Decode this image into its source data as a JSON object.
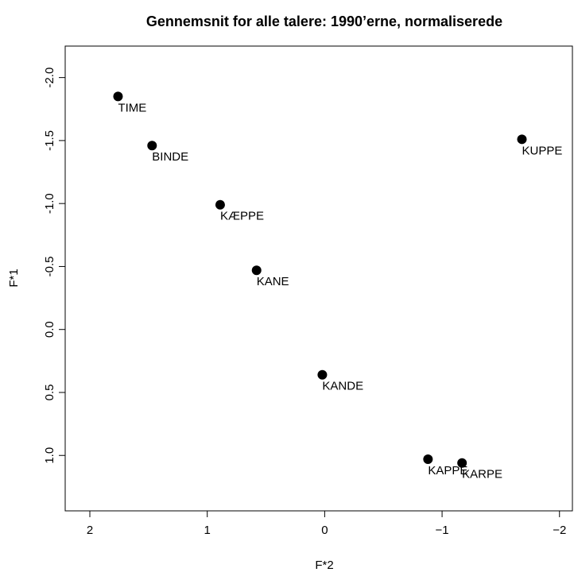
{
  "chart_data": {
    "type": "scatter",
    "title": "Gennemsnit for alle talere: 1990’erne, normaliserede",
    "x_label": "F*2",
    "y_label": "F*1",
    "x": [
      1.76,
      1.47,
      0.89,
      0.58,
      0.02,
      -0.88,
      -1.17,
      -1.68
    ],
    "values": [
      -1.85,
      -1.46,
      -0.99,
      -0.47,
      0.36,
      1.03,
      1.06,
      -1.51
    ],
    "labels": [
      "TIME",
      "BINDE",
      "KÆPPE",
      "KANE",
      "KANDE",
      "KAPPE",
      "KARPE",
      "KUPPE"
    ],
    "color": "#000000",
    "xlim": [
      2.21,
      -2.11
    ],
    "ylim": [
      -2.25,
      1.44
    ],
    "xticks": [
      2,
      1,
      0,
      {
        "value": -1,
        "label": "−1"
      },
      {
        "value": -2,
        "label": "−2"
      }
    ],
    "yticks": [
      {
        "value": -2,
        "label": "-2.0"
      },
      {
        "value": -1.5,
        "label": "-1.5"
      },
      {
        "value": -1,
        "label": "-1.0"
      },
      {
        "value": -0.5,
        "label": "-0.5"
      },
      {
        "value": 0,
        "label": "0.0"
      },
      0.5,
      {
        "value": 1,
        "label": "1.0"
      }
    ]
  }
}
